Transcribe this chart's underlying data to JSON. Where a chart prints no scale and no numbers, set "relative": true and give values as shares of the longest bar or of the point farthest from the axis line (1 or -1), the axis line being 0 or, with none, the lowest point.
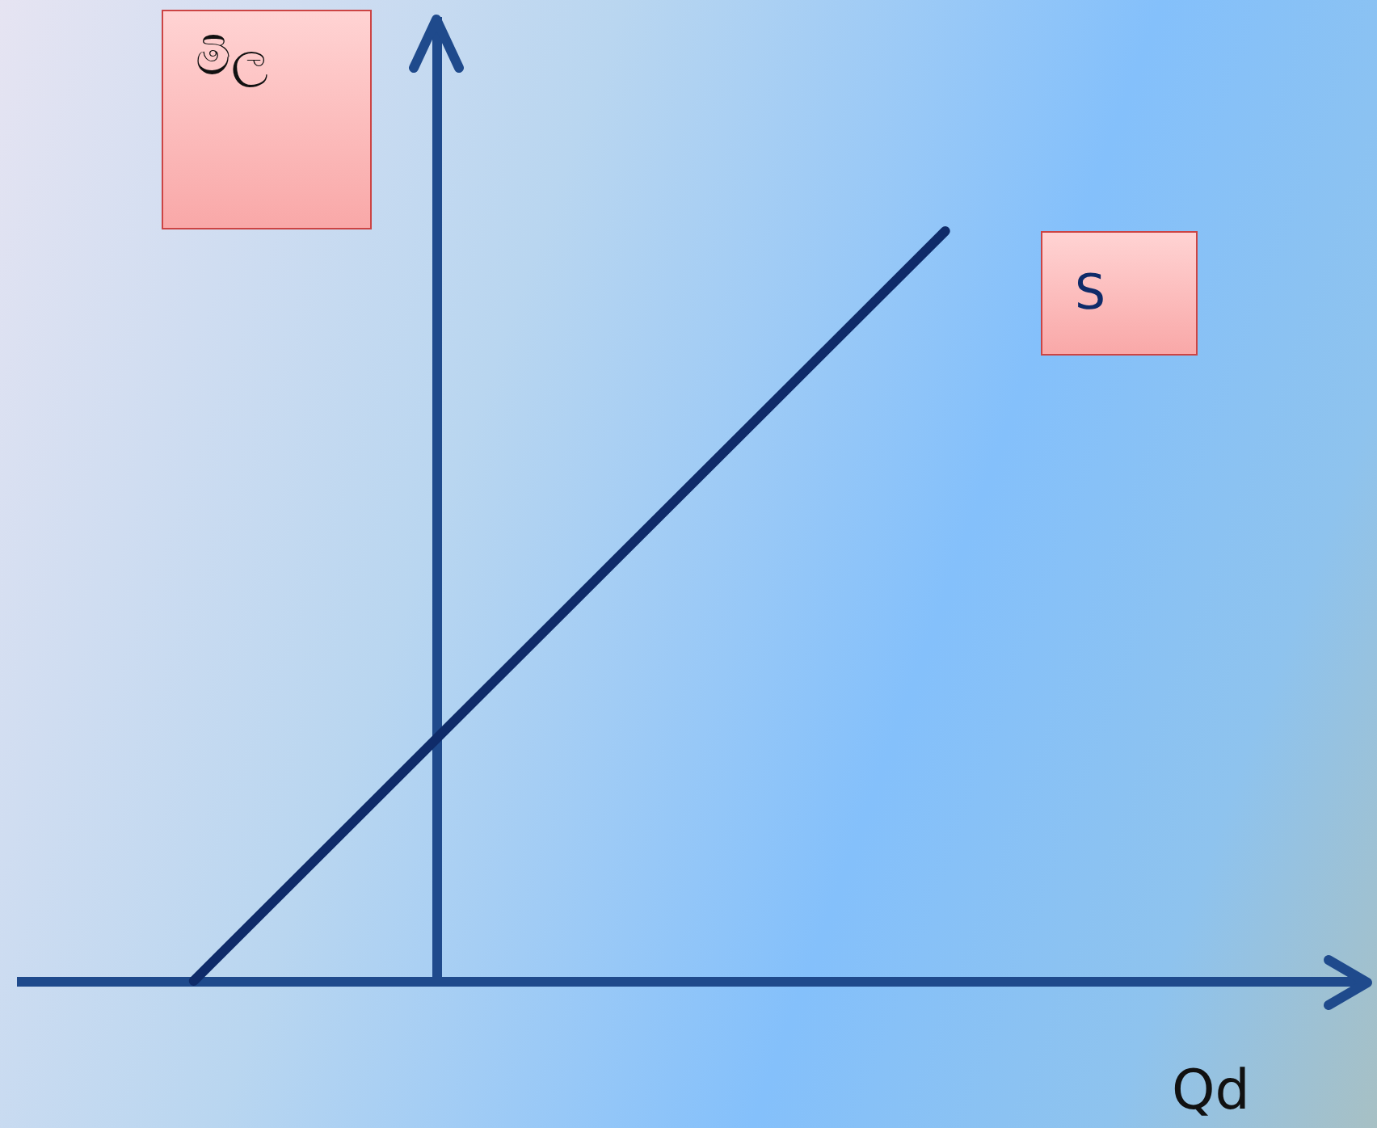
{
  "chart_data": {
    "type": "line",
    "relative": true,
    "xlabel": "Qd",
    "ylabel": "මිල",
    "categories": [
      null,
      null
    ],
    "marker": "none",
    "series": [
      {
        "name": "S",
        "color": "#0f2b69",
        "values": [
          0,
          1
        ]
      }
    ]
  }
}
